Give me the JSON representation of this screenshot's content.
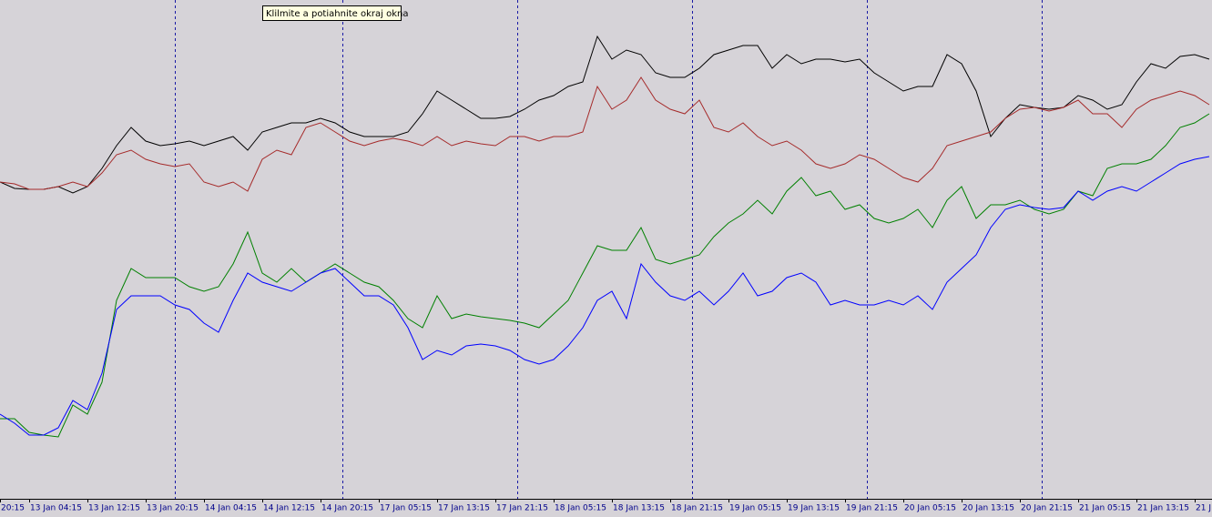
{
  "chart_data": {
    "type": "line",
    "tooltip": "Klilmite a potiahnite okraj okna",
    "x": [
      0,
      1,
      2,
      3,
      4,
      5,
      6,
      7,
      8,
      9,
      10,
      11,
      12,
      13,
      14,
      15,
      16,
      17,
      18,
      19,
      20,
      21,
      22,
      23,
      24,
      25,
      26,
      27,
      28,
      29,
      30,
      31,
      32,
      33,
      34,
      35,
      36,
      37,
      38,
      39,
      40,
      41,
      42,
      43,
      44,
      45,
      46,
      47,
      48,
      49,
      50,
      51,
      52,
      53,
      54,
      55,
      56,
      57,
      58,
      59,
      60,
      61,
      62,
      63,
      64,
      65,
      66,
      67,
      68,
      69,
      70,
      71,
      72,
      73,
      74,
      75,
      76,
      77,
      78,
      79,
      80,
      81,
      82,
      83
    ],
    "xlim": [
      0,
      83.1875
    ],
    "ylim": [
      548,
      0
    ],
    "xticks": [
      {
        "value": 0,
        "label": "20:15"
      },
      {
        "value": 2,
        "label": "13 Jan 04:15"
      },
      {
        "value": 6,
        "label": "13 Jan 12:15"
      },
      {
        "value": 10,
        "label": "13 Jan 20:15"
      },
      {
        "value": 14,
        "label": "14 Jan 04:15"
      },
      {
        "value": 18,
        "label": "14 Jan 12:15"
      },
      {
        "value": 22,
        "label": "14 Jan 20:15"
      },
      {
        "value": 26,
        "label": "17 Jan 05:15"
      },
      {
        "value": 30,
        "label": "17 Jan 13:15"
      },
      {
        "value": 34,
        "label": "17 Jan 21:15"
      },
      {
        "value": 38,
        "label": "18 Jan 05:15"
      },
      {
        "value": 42,
        "label": "18 Jan 13:15"
      },
      {
        "value": 46,
        "label": "18 Jan 21:15"
      },
      {
        "value": 50,
        "label": "19 Jan 05:15"
      },
      {
        "value": 54,
        "label": "19 Jan 13:15"
      },
      {
        "value": 58,
        "label": "19 Jan 21:15"
      },
      {
        "value": 62,
        "label": "20 Jan 05:15"
      },
      {
        "value": 66,
        "label": "20 Jan 13:15"
      },
      {
        "value": 70,
        "label": "20 Jan 21:15"
      },
      {
        "value": 74,
        "label": "21 Jan 05:15"
      },
      {
        "value": 78,
        "label": "21 Jan 13:15"
      },
      {
        "value": 82,
        "label": "21 J"
      }
    ],
    "separators": [
      12,
      23.5,
      35.5,
      47.5,
      59.5,
      71.5
    ],
    "separator_color": "#1a1aa6",
    "series": [
      {
        "color": "#000000",
        "values": [
          200,
          207,
          208,
          208,
          205,
          212,
          205,
          185,
          160,
          140,
          155,
          160,
          158,
          155,
          160,
          155,
          150,
          165,
          145,
          140,
          135,
          135,
          130,
          135,
          145,
          150,
          150,
          150,
          145,
          125,
          100,
          110,
          120,
          130,
          130,
          128,
          120,
          110,
          105,
          95,
          90,
          40,
          65,
          55,
          60,
          80,
          85,
          85,
          75,
          60,
          55,
          50,
          50,
          75,
          60,
          70,
          65,
          65,
          68,
          65,
          80,
          90,
          100,
          95,
          95,
          60,
          70,
          100,
          150,
          130,
          115,
          118,
          120,
          118,
          105,
          110,
          120,
          115,
          90,
          70,
          75,
          62,
          60,
          65
        ]
      },
      {
        "color": "#a52a2a",
        "values": [
          200,
          202,
          208,
          208,
          205,
          200,
          205,
          190,
          170,
          165,
          175,
          180,
          183,
          180,
          200,
          205,
          200,
          210,
          175,
          165,
          170,
          140,
          135,
          145,
          155,
          160,
          155,
          152,
          155,
          160,
          150,
          160,
          155,
          158,
          160,
          150,
          150,
          155,
          150,
          150,
          145,
          95,
          120,
          110,
          85,
          110,
          120,
          125,
          110,
          140,
          145,
          135,
          150,
          160,
          155,
          165,
          180,
          185,
          180,
          170,
          175,
          185,
          195,
          200,
          185,
          160,
          155,
          150,
          145,
          130,
          120,
          118,
          122,
          118,
          110,
          125,
          125,
          140,
          120,
          110,
          105,
          100,
          105,
          115
        ]
      },
      {
        "color": "#008000",
        "values": [
          460,
          460,
          475,
          478,
          480,
          445,
          455,
          420,
          330,
          295,
          305,
          305,
          305,
          315,
          320,
          315,
          290,
          255,
          300,
          310,
          295,
          310,
          300,
          290,
          300,
          310,
          315,
          330,
          350,
          360,
          325,
          350,
          345,
          348,
          350,
          352,
          355,
          360,
          345,
          330,
          300,
          270,
          275,
          275,
          250,
          285,
          290,
          285,
          280,
          260,
          245,
          235,
          220,
          235,
          210,
          195,
          215,
          210,
          230,
          225,
          240,
          245,
          240,
          230,
          250,
          220,
          205,
          240,
          225,
          225,
          220,
          230,
          235,
          230,
          210,
          215,
          185,
          180,
          180,
          175,
          160,
          140,
          135,
          125
        ]
      },
      {
        "color": "#0000ff",
        "values": [
          455,
          465,
          478,
          478,
          470,
          440,
          450,
          410,
          340,
          325,
          325,
          325,
          335,
          340,
          355,
          365,
          330,
          300,
          310,
          315,
          320,
          310,
          300,
          295,
          310,
          325,
          325,
          335,
          360,
          395,
          385,
          390,
          380,
          378,
          380,
          385,
          395,
          400,
          395,
          380,
          360,
          330,
          320,
          350,
          290,
          310,
          325,
          330,
          320,
          335,
          320,
          300,
          325,
          320,
          305,
          300,
          310,
          335,
          330,
          335,
          335,
          330,
          335,
          325,
          340,
          310,
          295,
          280,
          250,
          230,
          225,
          228,
          230,
          228,
          210,
          220,
          210,
          205,
          210,
          200,
          190,
          180,
          175,
          172
        ]
      }
    ]
  }
}
